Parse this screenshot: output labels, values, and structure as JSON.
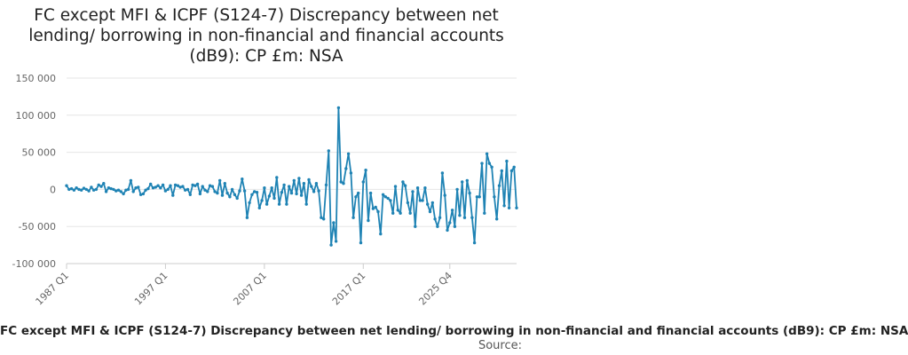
{
  "title": "FC except MFI & ICPF (S124-7) Discrepancy between net lending/ borrowing in non-financial and financial accounts (dB9): CP £m: NSA",
  "source_label": "Source:",
  "chart_data": {
    "type": "line",
    "title": "FC except MFI & ICPF (S124-7) Discrepancy between net lending/ borrowing in non-financial and financial accounts (dB9): CP £m: NSA",
    "xlabel": "",
    "ylabel": "",
    "ylim": [
      -100000,
      150000
    ],
    "yticks": [
      -100000,
      -50000,
      0,
      50000,
      100000,
      150000
    ],
    "ytick_labels": [
      "-100 000",
      "-50 000",
      "0",
      "50 000",
      "100 000",
      "150 000"
    ],
    "xticks": [
      "1987 Q1",
      "1997 Q1",
      "2007 Q1",
      "2017 Q1",
      "2025 Q4"
    ],
    "grid": "horizontal",
    "legend": "bottom",
    "color": "#1f83b4",
    "series": [
      {
        "name": "FC except MFI & ICPF (S124-7) Discrepancy between net lending/ borrowing in non-financial and financial accounts (dB9): CP £m: NSA",
        "start": "1987 Q1",
        "values": [
          5000,
          0,
          1000,
          -1000,
          2000,
          0,
          -1000,
          1500,
          0,
          -2000,
          3000,
          -1000,
          0,
          6000,
          4000,
          8000,
          -3000,
          2000,
          1000,
          0,
          -2000,
          -1000,
          -3000,
          -6000,
          -1000,
          0,
          12000,
          -3000,
          2000,
          3000,
          -7000,
          -6000,
          -1000,
          1000,
          7000,
          2000,
          3000,
          5000,
          2000,
          6000,
          -2000,
          0,
          5000,
          -8000,
          6000,
          5000,
          3000,
          4000,
          -1000,
          0,
          -7000,
          6000,
          5000,
          7000,
          -6000,
          4000,
          -1000,
          -3000,
          5000,
          4000,
          -3000,
          -5000,
          12000,
          -8000,
          8000,
          -5000,
          -10000,
          0,
          -7000,
          -12000,
          -2000,
          14000,
          -2000,
          -38000,
          -18000,
          -7000,
          -3000,
          -4000,
          -25000,
          -15000,
          2000,
          -20000,
          -9000,
          2000,
          -12000,
          16000,
          -20000,
          -4000,
          6000,
          -20000,
          4000,
          -5000,
          12000,
          -6000,
          15000,
          -8000,
          8000,
          -20000,
          13000,
          4000,
          -3000,
          8000,
          -2000,
          -38000,
          -40000,
          6000,
          52000,
          -75000,
          -45000,
          -70000,
          110000,
          10000,
          8000,
          28000,
          48000,
          22000,
          -38000,
          -10000,
          -5000,
          -72000,
          10000,
          26000,
          -42000,
          -5000,
          -26000,
          -24000,
          -30000,
          -60000,
          -7000,
          -10000,
          -12000,
          -15000,
          -32000,
          4000,
          -28000,
          -32000,
          10000,
          5000,
          -18000,
          -32000,
          -3000,
          -50000,
          2000,
          -15000,
          -15000,
          2000,
          -20000,
          -30000,
          -18000,
          -40000,
          -50000,
          -38000,
          22000,
          -8000,
          -55000,
          -45000,
          -28000,
          -50000,
          0,
          -35000,
          10000,
          -38000,
          12000,
          -5000,
          -38000,
          -72000,
          -10000,
          -10000,
          35000,
          -32000,
          48000,
          35000,
          30000,
          -10000,
          -40000,
          5000,
          25000,
          -22000,
          38000,
          -25000,
          25000,
          30000,
          -25000
        ]
      }
    ]
  }
}
